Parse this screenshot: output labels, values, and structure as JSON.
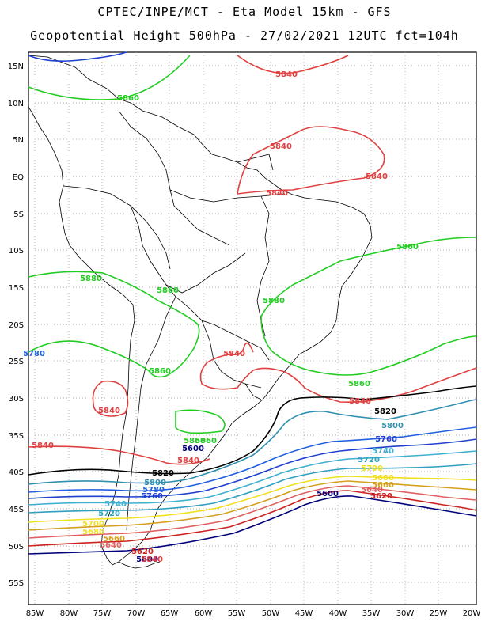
{
  "title_line1": "CPTEC/INPE/MCT -  Eta Model 15km - GFS",
  "title_line2": "Geopotential Height 500hPa - 27/02/2021 12UTC fct=104h",
  "lat_labels": [
    "15N",
    "10N",
    "5N",
    "EQ",
    "5S",
    "10S",
    "15S",
    "20S",
    "25S",
    "30S",
    "35S",
    "40S",
    "45S",
    "50S",
    "55S"
  ],
  "lon_labels": [
    "85W",
    "80W",
    "75W",
    "70W",
    "65W",
    "60W",
    "55W",
    "50W",
    "45W",
    "40W",
    "35W",
    "30W",
    "25W",
    "20W"
  ],
  "contour_colors": {
    "5580": "#1a1a7a",
    "5600": "#00007a",
    "5620": "#cc2222",
    "5640": "#e06060",
    "5660": "#d4a020",
    "5680": "#f0e020",
    "5700": "#f0e020",
    "5720": "#30a0c0",
    "5740": "#40b0d0",
    "5760": "#2040d0",
    "5780": "#2060e0",
    "5800": "#3090b0",
    "5820": "#000000",
    "5840": "#e04040",
    "5860": "#22cc22"
  },
  "contour_labels": [
    {
      "text": "5840",
      "color": "5840"
    },
    {
      "text": "5860",
      "color": "5860"
    },
    {
      "text": "5840",
      "color": "5840"
    },
    {
      "text": "5840",
      "color": "5840"
    },
    {
      "text": "5840",
      "color": "5840"
    },
    {
      "text": "5860",
      "color": "5860"
    },
    {
      "text": "5880",
      "color": "5860"
    },
    {
      "text": "5860",
      "color": "5860"
    },
    {
      "text": "5880",
      "color": "5860"
    },
    {
      "text": "5840",
      "color": "5840"
    },
    {
      "text": "5860",
      "color": "5860"
    },
    {
      "text": "5860",
      "color": "5860"
    },
    {
      "text": "5840",
      "color": "5840"
    },
    {
      "text": "5840",
      "color": "5840"
    },
    {
      "text": "5820",
      "color": "5820"
    },
    {
      "text": "5800",
      "color": "5800"
    },
    {
      "text": "5860",
      "color": "5860"
    },
    {
      "text": "5780",
      "color": "5780"
    },
    {
      "text": "5760",
      "color": "5760"
    },
    {
      "text": "5740",
      "color": "5740"
    },
    {
      "text": "5720",
      "color": "5720"
    },
    {
      "text": "5700",
      "color": "5700"
    },
    {
      "text": "5680",
      "color": "5680"
    },
    {
      "text": "5660",
      "color": "5660"
    },
    {
      "text": "5640",
      "color": "5640"
    },
    {
      "text": "5620",
      "color": "5620"
    },
    {
      "text": "5600",
      "color": "5600"
    },
    {
      "text": "5600",
      "color": "5600"
    },
    {
      "text": "5840",
      "color": "5840"
    },
    {
      "text": "5840",
      "color": "5840"
    },
    {
      "text": "5820",
      "color": "5820"
    },
    {
      "text": "5800",
      "color": "5800"
    },
    {
      "text": "5780",
      "color": "5780"
    },
    {
      "text": "5760",
      "color": "5760"
    },
    {
      "text": "5740",
      "color": "5740"
    },
    {
      "text": "5720",
      "color": "5720"
    },
    {
      "text": "5700",
      "color": "5700"
    },
    {
      "text": "5680",
      "color": "5680"
    },
    {
      "text": "5660",
      "color": "5660"
    },
    {
      "text": "5640",
      "color": "5640"
    },
    {
      "text": "5620",
      "color": "5620"
    },
    {
      "text": "5600",
      "color": "5600"
    },
    {
      "text": "5840",
      "color": "5840"
    },
    {
      "text": "5860",
      "color": "5860"
    }
  ]
}
